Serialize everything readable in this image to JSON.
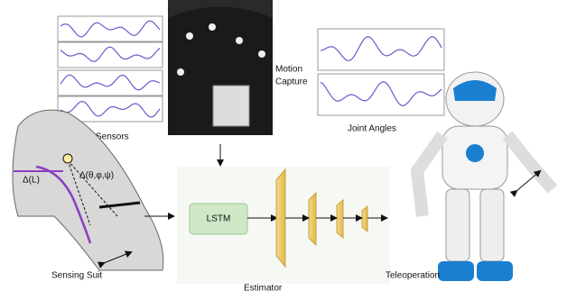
{
  "labels": {
    "sensors": "Sensors",
    "motion_capture": [
      "Motion",
      "Capture"
    ],
    "joint_angles": "Joint Angles",
    "delta_l": "Δ(L)",
    "delta_angles": "Δ(θ,φ,ψ)",
    "lstm": "LSTM",
    "sensing_suit": "Sensing Suit",
    "estimator": "Estimator",
    "teleoperation": "Teleoperation"
  }
}
